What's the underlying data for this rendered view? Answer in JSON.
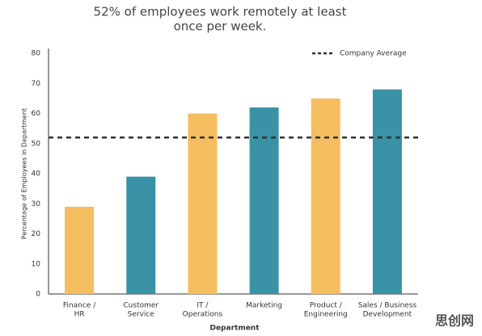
{
  "chart_data": {
    "type": "bar",
    "title": [
      "52% of employees work remotely at least",
      "once per week."
    ],
    "x_label": "Department",
    "y_label": "Percentage of Employees in Department",
    "categories": [
      [
        "Finance /",
        "HR"
      ],
      [
        "Customer",
        "Service"
      ],
      [
        "IT /",
        "Operations"
      ],
      [
        "Marketing"
      ],
      [
        "Product /",
        "Engineering"
      ],
      [
        "Sales / Business",
        "Development"
      ]
    ],
    "values": [
      29,
      39,
      60,
      62,
      65,
      68
    ],
    "colors": [
      "#f6bd60",
      "#3a92a6",
      "#f6bd60",
      "#3a92a6",
      "#f6bd60",
      "#3a92a6"
    ],
    "reference_line": {
      "name": "Company Average",
      "value": 52,
      "color": "#333333"
    },
    "legend": "top-right",
    "ylim": [
      0,
      80
    ],
    "yticks": [
      0,
      10,
      20,
      30,
      40,
      50,
      60,
      70,
      80
    ],
    "grid": false
  },
  "watermark": "思创网"
}
